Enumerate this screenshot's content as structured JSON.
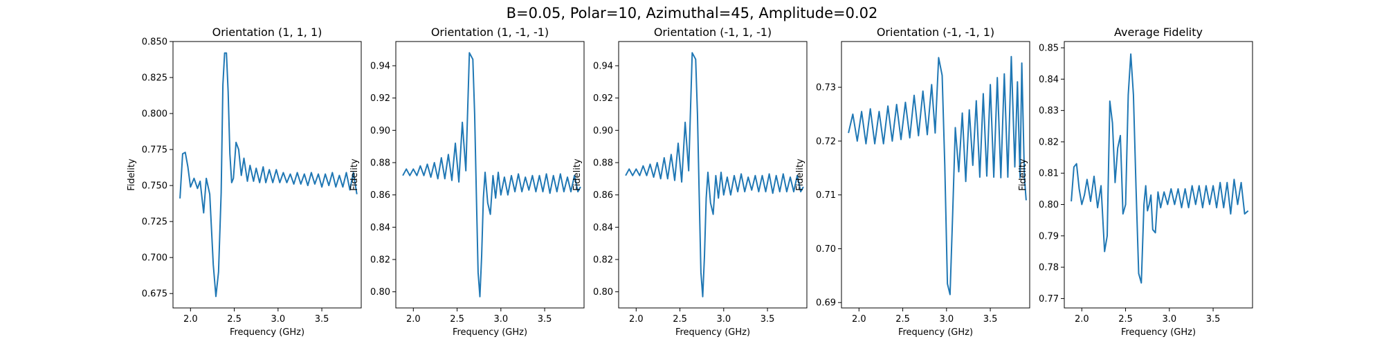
{
  "figure": {
    "suptitle": "B=0.05, Polar=10, Azimuthal=45, Amplitude=0.02",
    "line_color": "#1f77b4"
  },
  "chart_data": [
    {
      "type": "line",
      "title": "Orientation (1, 1, 1)",
      "xlabel": "Frequency (GHz)",
      "ylabel": "Fidelity",
      "xlim": [
        1.8,
        3.95
      ],
      "ylim": [
        0.665,
        0.85
      ],
      "xticks": [
        "2.0",
        "2.5",
        "3.0",
        "3.5"
      ],
      "yticks": [
        "0.675",
        "0.700",
        "0.725",
        "0.750",
        "0.775",
        "0.800",
        "0.825",
        "0.850"
      ],
      "series": [
        {
          "x": [
            1.88,
            1.91,
            1.94,
            1.97,
            2.0,
            2.04,
            2.08,
            2.11,
            2.15,
            2.18,
            2.22,
            2.26,
            2.29,
            2.32,
            2.35,
            2.37,
            2.39,
            2.41,
            2.43,
            2.45,
            2.47,
            2.49,
            2.52,
            2.55,
            2.58,
            2.61,
            2.65,
            2.68,
            2.72,
            2.75,
            2.79,
            2.83,
            2.86,
            2.9,
            2.94,
            2.98,
            3.02,
            3.06,
            3.1,
            3.14,
            3.18,
            3.22,
            3.26,
            3.3,
            3.34,
            3.38,
            3.42,
            3.46,
            3.5,
            3.54,
            3.58,
            3.62,
            3.66,
            3.7,
            3.74,
            3.78,
            3.82,
            3.86,
            3.9
          ],
          "y": [
            0.741,
            0.772,
            0.773,
            0.763,
            0.749,
            0.755,
            0.748,
            0.753,
            0.731,
            0.755,
            0.744,
            0.695,
            0.673,
            0.69,
            0.745,
            0.82,
            0.842,
            0.842,
            0.815,
            0.772,
            0.752,
            0.755,
            0.78,
            0.775,
            0.757,
            0.769,
            0.753,
            0.764,
            0.753,
            0.762,
            0.752,
            0.763,
            0.752,
            0.761,
            0.752,
            0.761,
            0.752,
            0.759,
            0.752,
            0.758,
            0.751,
            0.759,
            0.751,
            0.758,
            0.75,
            0.759,
            0.751,
            0.758,
            0.749,
            0.758,
            0.75,
            0.759,
            0.749,
            0.757,
            0.749,
            0.759,
            0.747,
            0.759,
            0.744
          ]
        }
      ]
    },
    {
      "type": "line",
      "title": "Orientation (1, -1, -1)",
      "xlabel": "Frequency (GHz)",
      "ylabel": "Fidelity",
      "xlim": [
        1.8,
        3.95
      ],
      "ylim": [
        0.79,
        0.955
      ],
      "xticks": [
        "2.0",
        "2.5",
        "3.0",
        "3.5"
      ],
      "yticks": [
        "0.80",
        "0.82",
        "0.84",
        "0.86",
        "0.88",
        "0.90",
        "0.92",
        "0.94"
      ],
      "series": [
        {
          "x": [
            1.88,
            1.92,
            1.96,
            2.0,
            2.04,
            2.08,
            2.12,
            2.16,
            2.2,
            2.24,
            2.28,
            2.32,
            2.36,
            2.4,
            2.44,
            2.48,
            2.52,
            2.56,
            2.6,
            2.64,
            2.68,
            2.7,
            2.72,
            2.74,
            2.76,
            2.78,
            2.8,
            2.82,
            2.85,
            2.88,
            2.91,
            2.94,
            2.97,
            3.0,
            3.04,
            3.08,
            3.12,
            3.16,
            3.2,
            3.24,
            3.28,
            3.32,
            3.36,
            3.4,
            3.44,
            3.48,
            3.52,
            3.56,
            3.6,
            3.64,
            3.68,
            3.72,
            3.76,
            3.8,
            3.84,
            3.88,
            3.91
          ],
          "y": [
            0.872,
            0.876,
            0.872,
            0.876,
            0.872,
            0.878,
            0.872,
            0.879,
            0.871,
            0.88,
            0.87,
            0.883,
            0.87,
            0.885,
            0.869,
            0.892,
            0.868,
            0.905,
            0.875,
            0.948,
            0.944,
            0.91,
            0.86,
            0.812,
            0.797,
            0.822,
            0.858,
            0.874,
            0.855,
            0.848,
            0.872,
            0.858,
            0.874,
            0.86,
            0.871,
            0.86,
            0.872,
            0.862,
            0.873,
            0.862,
            0.871,
            0.863,
            0.872,
            0.862,
            0.872,
            0.862,
            0.873,
            0.861,
            0.872,
            0.862,
            0.873,
            0.862,
            0.871,
            0.862,
            0.872,
            0.862,
            0.865
          ]
        }
      ]
    },
    {
      "type": "line",
      "title": "Orientation (-1, 1, -1)",
      "xlabel": "Frequency (GHz)",
      "ylabel": "Fidelity",
      "xlim": [
        1.8,
        3.95
      ],
      "ylim": [
        0.79,
        0.955
      ],
      "xticks": [
        "2.0",
        "2.5",
        "3.0",
        "3.5"
      ],
      "yticks": [
        "0.80",
        "0.82",
        "0.84",
        "0.86",
        "0.88",
        "0.90",
        "0.92",
        "0.94"
      ],
      "series": [
        {
          "x": [
            1.88,
            1.92,
            1.96,
            2.0,
            2.04,
            2.08,
            2.12,
            2.16,
            2.2,
            2.24,
            2.28,
            2.32,
            2.36,
            2.4,
            2.44,
            2.48,
            2.52,
            2.56,
            2.6,
            2.64,
            2.68,
            2.7,
            2.72,
            2.74,
            2.76,
            2.78,
            2.8,
            2.82,
            2.85,
            2.88,
            2.91,
            2.94,
            2.97,
            3.0,
            3.04,
            3.08,
            3.12,
            3.16,
            3.2,
            3.24,
            3.28,
            3.32,
            3.36,
            3.4,
            3.44,
            3.48,
            3.52,
            3.56,
            3.6,
            3.64,
            3.68,
            3.72,
            3.76,
            3.8,
            3.84,
            3.88,
            3.91
          ],
          "y": [
            0.872,
            0.876,
            0.872,
            0.876,
            0.872,
            0.878,
            0.872,
            0.879,
            0.871,
            0.88,
            0.87,
            0.883,
            0.87,
            0.885,
            0.869,
            0.892,
            0.868,
            0.905,
            0.875,
            0.948,
            0.944,
            0.91,
            0.86,
            0.812,
            0.797,
            0.822,
            0.858,
            0.874,
            0.855,
            0.848,
            0.872,
            0.858,
            0.874,
            0.86,
            0.871,
            0.86,
            0.872,
            0.862,
            0.873,
            0.862,
            0.871,
            0.863,
            0.872,
            0.862,
            0.872,
            0.862,
            0.873,
            0.861,
            0.872,
            0.862,
            0.873,
            0.862,
            0.871,
            0.862,
            0.872,
            0.862,
            0.865
          ]
        }
      ]
    },
    {
      "type": "line",
      "title": "Orientation (-1, -1, 1)",
      "xlabel": "Frequency (GHz)",
      "ylabel": "Fidelity",
      "xlim": [
        1.8,
        3.95
      ],
      "ylim": [
        0.689,
        0.7385
      ],
      "xticks": [
        "2.0",
        "2.5",
        "3.0",
        "3.5"
      ],
      "yticks": [
        "0.69",
        "0.70",
        "0.71",
        "0.72",
        "0.73"
      ],
      "series": [
        {
          "x": [
            1.88,
            1.93,
            1.98,
            2.03,
            2.08,
            2.13,
            2.18,
            2.23,
            2.28,
            2.33,
            2.38,
            2.43,
            2.48,
            2.53,
            2.58,
            2.63,
            2.68,
            2.73,
            2.78,
            2.83,
            2.87,
            2.91,
            2.95,
            2.98,
            3.01,
            3.04,
            3.07,
            3.1,
            3.14,
            3.18,
            3.22,
            3.26,
            3.3,
            3.34,
            3.38,
            3.42,
            3.46,
            3.5,
            3.54,
            3.58,
            3.62,
            3.66,
            3.7,
            3.74,
            3.78,
            3.81,
            3.84,
            3.86,
            3.89,
            3.91
          ],
          "y": [
            0.7215,
            0.725,
            0.72,
            0.7255,
            0.7195,
            0.726,
            0.7195,
            0.7255,
            0.7195,
            0.7265,
            0.72,
            0.7268,
            0.7203,
            0.7272,
            0.7206,
            0.7285,
            0.721,
            0.7293,
            0.7212,
            0.7305,
            0.7215,
            0.7355,
            0.7322,
            0.7155,
            0.6935,
            0.6915,
            0.7065,
            0.7225,
            0.7143,
            0.7252,
            0.7125,
            0.7258,
            0.7155,
            0.7275,
            0.7133,
            0.7288,
            0.7135,
            0.7305,
            0.7133,
            0.7318,
            0.7132,
            0.7325,
            0.7133,
            0.7357,
            0.7152,
            0.731,
            0.7132,
            0.7345,
            0.7132,
            0.709
          ]
        }
      ]
    },
    {
      "type": "line",
      "title": "Average Fidelity",
      "xlabel": "Frequency (GHz)",
      "ylabel": "Fidelity",
      "xlim": [
        1.8,
        3.95
      ],
      "ylim": [
        0.767,
        0.852
      ],
      "xticks": [
        "2.0",
        "2.5",
        "3.0",
        "3.5"
      ],
      "yticks": [
        "0.77",
        "0.78",
        "0.79",
        "0.80",
        "0.81",
        "0.82",
        "0.83",
        "0.84",
        "0.85"
      ],
      "series": [
        {
          "x": [
            1.88,
            1.91,
            1.94,
            1.97,
            2.0,
            2.03,
            2.06,
            2.1,
            2.14,
            2.18,
            2.22,
            2.26,
            2.29,
            2.32,
            2.35,
            2.38,
            2.41,
            2.44,
            2.47,
            2.5,
            2.53,
            2.56,
            2.59,
            2.62,
            2.65,
            2.68,
            2.71,
            2.73,
            2.75,
            2.77,
            2.79,
            2.81,
            2.84,
            2.87,
            2.9,
            2.94,
            2.98,
            3.02,
            3.06,
            3.1,
            3.14,
            3.18,
            3.22,
            3.26,
            3.3,
            3.34,
            3.38,
            3.42,
            3.46,
            3.5,
            3.54,
            3.58,
            3.62,
            3.66,
            3.7,
            3.74,
            3.78,
            3.82,
            3.86,
            3.9
          ],
          "y": [
            0.801,
            0.812,
            0.813,
            0.805,
            0.8,
            0.803,
            0.808,
            0.801,
            0.809,
            0.799,
            0.806,
            0.785,
            0.79,
            0.833,
            0.826,
            0.807,
            0.818,
            0.822,
            0.797,
            0.8,
            0.835,
            0.848,
            0.835,
            0.805,
            0.778,
            0.775,
            0.8,
            0.806,
            0.798,
            0.8,
            0.803,
            0.792,
            0.791,
            0.804,
            0.799,
            0.804,
            0.8,
            0.805,
            0.8,
            0.805,
            0.799,
            0.805,
            0.799,
            0.806,
            0.8,
            0.806,
            0.799,
            0.806,
            0.8,
            0.806,
            0.799,
            0.807,
            0.799,
            0.807,
            0.797,
            0.808,
            0.8,
            0.807,
            0.797,
            0.798
          ]
        }
      ]
    }
  ]
}
